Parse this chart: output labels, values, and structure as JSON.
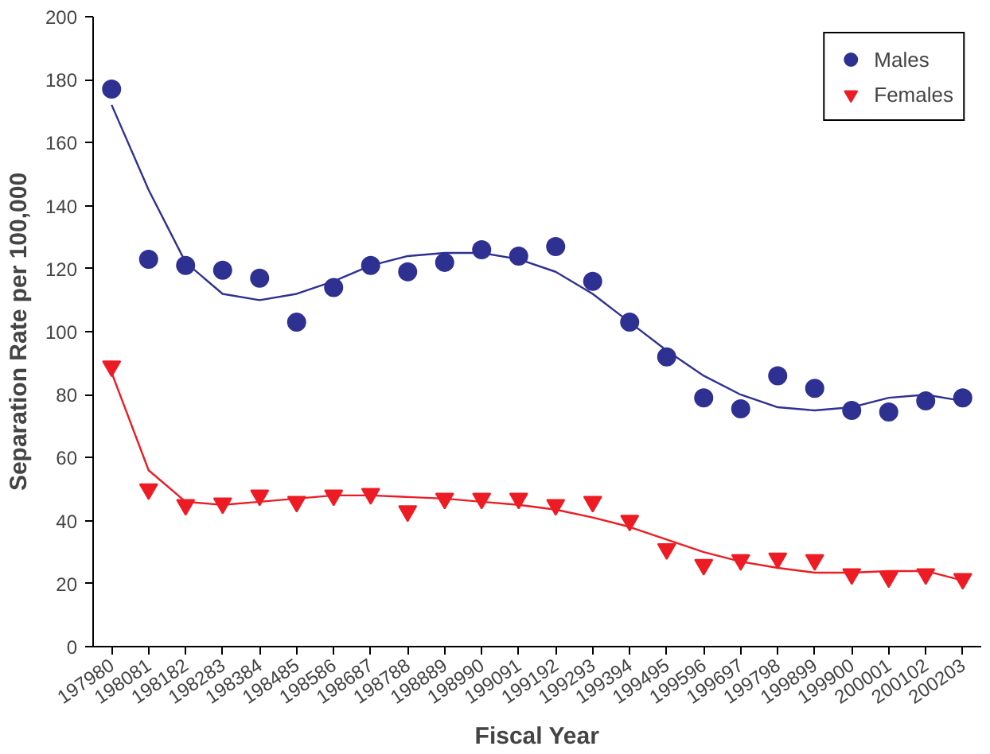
{
  "chart_data": {
    "type": "scatter",
    "xlabel": "Fiscal Year",
    "ylabel": "Separation Rate per 100,000",
    "categories": [
      "197980",
      "198081",
      "198182",
      "198283",
      "198384",
      "198485",
      "198586",
      "198687",
      "198788",
      "198889",
      "198990",
      "199091",
      "199192",
      "199293",
      "199394",
      "199495",
      "199596",
      "199697",
      "199798",
      "199899",
      "199900",
      "200001",
      "200102",
      "200203"
    ],
    "series": [
      {
        "name": "Males",
        "color": "#2e3192",
        "marker": "circle",
        "values": [
          177,
          123,
          121,
          119.5,
          117,
          103,
          114,
          121,
          119,
          122,
          126,
          124,
          127,
          116,
          103,
          92,
          79,
          75.5,
          86,
          82,
          75,
          74.5,
          78,
          79
        ]
      },
      {
        "name": "Females",
        "color": "#ed1c24",
        "marker": "triangle",
        "values": [
          89,
          50,
          45,
          45.5,
          48,
          46,
          48,
          48.5,
          43,
          47,
          47,
          47,
          45,
          46,
          40,
          31,
          26,
          27.5,
          28,
          27.5,
          23,
          22,
          23,
          21.5
        ]
      },
      {
        "type": "line",
        "color": "#2e3192",
        "values": [
          172,
          145,
          122,
          112,
          110,
          112,
          116,
          121,
          124,
          125,
          125,
          123,
          119,
          112,
          103,
          94,
          86,
          80,
          76,
          75,
          76,
          79,
          80,
          78
        ]
      },
      {
        "type": "line",
        "color": "#ed1c24",
        "values": [
          87,
          56,
          46,
          45,
          46,
          47,
          48,
          48,
          47.5,
          47,
          46,
          45,
          43.5,
          41,
          38,
          34,
          30,
          27,
          25,
          23.5,
          23.5,
          24,
          24,
          21
        ]
      }
    ],
    "ylim": [
      0,
      200
    ],
    "yticks": [
      0,
      20,
      40,
      60,
      80,
      100,
      120,
      140,
      160,
      180,
      200
    ],
    "grid": false,
    "legend": "top right"
  }
}
